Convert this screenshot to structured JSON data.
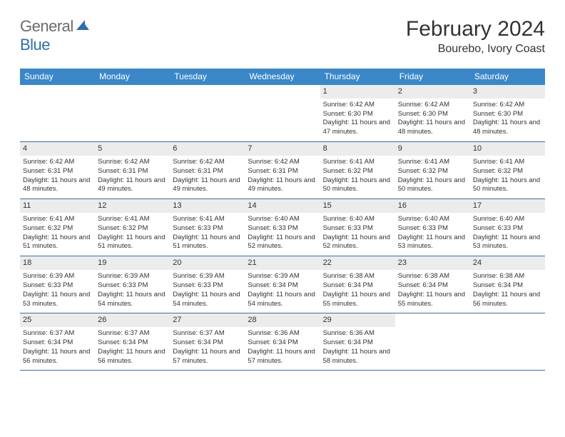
{
  "brand": {
    "general": "General",
    "blue": "Blue"
  },
  "title": "February 2024",
  "location": "Bourebo, Ivory Coast",
  "colors": {
    "header_bg": "#3b87c8",
    "header_text": "#ffffff",
    "daynum_bg": "#ececec",
    "week_border": "#3b6fa0",
    "text": "#333333",
    "logo_gray": "#6b6b6b",
    "logo_blue": "#2f6fa8"
  },
  "day_names": [
    "Sunday",
    "Monday",
    "Tuesday",
    "Wednesday",
    "Thursday",
    "Friday",
    "Saturday"
  ],
  "weeks": [
    [
      {
        "n": "",
        "sunrise": "",
        "sunset": "",
        "daylight": ""
      },
      {
        "n": "",
        "sunrise": "",
        "sunset": "",
        "daylight": ""
      },
      {
        "n": "",
        "sunrise": "",
        "sunset": "",
        "daylight": ""
      },
      {
        "n": "",
        "sunrise": "",
        "sunset": "",
        "daylight": ""
      },
      {
        "n": "1",
        "sunrise": "Sunrise: 6:42 AM",
        "sunset": "Sunset: 6:30 PM",
        "daylight": "Daylight: 11 hours and 47 minutes."
      },
      {
        "n": "2",
        "sunrise": "Sunrise: 6:42 AM",
        "sunset": "Sunset: 6:30 PM",
        "daylight": "Daylight: 11 hours and 48 minutes."
      },
      {
        "n": "3",
        "sunrise": "Sunrise: 6:42 AM",
        "sunset": "Sunset: 6:30 PM",
        "daylight": "Daylight: 11 hours and 48 minutes."
      }
    ],
    [
      {
        "n": "4",
        "sunrise": "Sunrise: 6:42 AM",
        "sunset": "Sunset: 6:31 PM",
        "daylight": "Daylight: 11 hours and 48 minutes."
      },
      {
        "n": "5",
        "sunrise": "Sunrise: 6:42 AM",
        "sunset": "Sunset: 6:31 PM",
        "daylight": "Daylight: 11 hours and 49 minutes."
      },
      {
        "n": "6",
        "sunrise": "Sunrise: 6:42 AM",
        "sunset": "Sunset: 6:31 PM",
        "daylight": "Daylight: 11 hours and 49 minutes."
      },
      {
        "n": "7",
        "sunrise": "Sunrise: 6:42 AM",
        "sunset": "Sunset: 6:31 PM",
        "daylight": "Daylight: 11 hours and 49 minutes."
      },
      {
        "n": "8",
        "sunrise": "Sunrise: 6:41 AM",
        "sunset": "Sunset: 6:32 PM",
        "daylight": "Daylight: 11 hours and 50 minutes."
      },
      {
        "n": "9",
        "sunrise": "Sunrise: 6:41 AM",
        "sunset": "Sunset: 6:32 PM",
        "daylight": "Daylight: 11 hours and 50 minutes."
      },
      {
        "n": "10",
        "sunrise": "Sunrise: 6:41 AM",
        "sunset": "Sunset: 6:32 PM",
        "daylight": "Daylight: 11 hours and 50 minutes."
      }
    ],
    [
      {
        "n": "11",
        "sunrise": "Sunrise: 6:41 AM",
        "sunset": "Sunset: 6:32 PM",
        "daylight": "Daylight: 11 hours and 51 minutes."
      },
      {
        "n": "12",
        "sunrise": "Sunrise: 6:41 AM",
        "sunset": "Sunset: 6:32 PM",
        "daylight": "Daylight: 11 hours and 51 minutes."
      },
      {
        "n": "13",
        "sunrise": "Sunrise: 6:41 AM",
        "sunset": "Sunset: 6:33 PM",
        "daylight": "Daylight: 11 hours and 51 minutes."
      },
      {
        "n": "14",
        "sunrise": "Sunrise: 6:40 AM",
        "sunset": "Sunset: 6:33 PM",
        "daylight": "Daylight: 11 hours and 52 minutes."
      },
      {
        "n": "15",
        "sunrise": "Sunrise: 6:40 AM",
        "sunset": "Sunset: 6:33 PM",
        "daylight": "Daylight: 11 hours and 52 minutes."
      },
      {
        "n": "16",
        "sunrise": "Sunrise: 6:40 AM",
        "sunset": "Sunset: 6:33 PM",
        "daylight": "Daylight: 11 hours and 53 minutes."
      },
      {
        "n": "17",
        "sunrise": "Sunrise: 6:40 AM",
        "sunset": "Sunset: 6:33 PM",
        "daylight": "Daylight: 11 hours and 53 minutes."
      }
    ],
    [
      {
        "n": "18",
        "sunrise": "Sunrise: 6:39 AM",
        "sunset": "Sunset: 6:33 PM",
        "daylight": "Daylight: 11 hours and 53 minutes."
      },
      {
        "n": "19",
        "sunrise": "Sunrise: 6:39 AM",
        "sunset": "Sunset: 6:33 PM",
        "daylight": "Daylight: 11 hours and 54 minutes."
      },
      {
        "n": "20",
        "sunrise": "Sunrise: 6:39 AM",
        "sunset": "Sunset: 6:33 PM",
        "daylight": "Daylight: 11 hours and 54 minutes."
      },
      {
        "n": "21",
        "sunrise": "Sunrise: 6:39 AM",
        "sunset": "Sunset: 6:34 PM",
        "daylight": "Daylight: 11 hours and 54 minutes."
      },
      {
        "n": "22",
        "sunrise": "Sunrise: 6:38 AM",
        "sunset": "Sunset: 6:34 PM",
        "daylight": "Daylight: 11 hours and 55 minutes."
      },
      {
        "n": "23",
        "sunrise": "Sunrise: 6:38 AM",
        "sunset": "Sunset: 6:34 PM",
        "daylight": "Daylight: 11 hours and 55 minutes."
      },
      {
        "n": "24",
        "sunrise": "Sunrise: 6:38 AM",
        "sunset": "Sunset: 6:34 PM",
        "daylight": "Daylight: 11 hours and 56 minutes."
      }
    ],
    [
      {
        "n": "25",
        "sunrise": "Sunrise: 6:37 AM",
        "sunset": "Sunset: 6:34 PM",
        "daylight": "Daylight: 11 hours and 56 minutes."
      },
      {
        "n": "26",
        "sunrise": "Sunrise: 6:37 AM",
        "sunset": "Sunset: 6:34 PM",
        "daylight": "Daylight: 11 hours and 56 minutes."
      },
      {
        "n": "27",
        "sunrise": "Sunrise: 6:37 AM",
        "sunset": "Sunset: 6:34 PM",
        "daylight": "Daylight: 11 hours and 57 minutes."
      },
      {
        "n": "28",
        "sunrise": "Sunrise: 6:36 AM",
        "sunset": "Sunset: 6:34 PM",
        "daylight": "Daylight: 11 hours and 57 minutes."
      },
      {
        "n": "29",
        "sunrise": "Sunrise: 6:36 AM",
        "sunset": "Sunset: 6:34 PM",
        "daylight": "Daylight: 11 hours and 58 minutes."
      },
      {
        "n": "",
        "sunrise": "",
        "sunset": "",
        "daylight": ""
      },
      {
        "n": "",
        "sunrise": "",
        "sunset": "",
        "daylight": ""
      }
    ]
  ]
}
